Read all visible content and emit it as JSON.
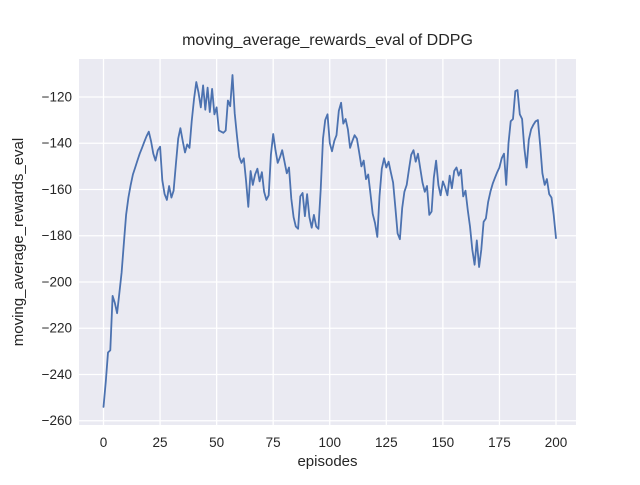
{
  "figure": {
    "title": "moving_average_rewards_eval of DDPG",
    "xlabel": "episodes",
    "ylabel": "moving_average_rewards_eval"
  },
  "colors": {
    "line": "#4c72b0",
    "plot_bg": "#eaeaf2",
    "fig_bg": "#ffffff",
    "grid": "#ffffff",
    "text": "#262626"
  },
  "axes": {
    "x_ticks": [
      0,
      25,
      50,
      75,
      100,
      125,
      150,
      175,
      200
    ],
    "y_ticks": [
      -120,
      -140,
      -160,
      -180,
      -200,
      -220,
      -240,
      -260
    ],
    "x_range": [
      -10.83,
      208.84
    ],
    "y_range": [
      -261.84,
      -103.57
    ],
    "grid": true,
    "legend": false
  },
  "chart_data": {
    "type": "line",
    "title": "moving_average_rewards_eval of DDPG",
    "xlabel": "episodes",
    "ylabel": "moving_average_rewards_eval",
    "series_name": "moving_average_rewards_eval",
    "x": [
      0,
      1,
      2,
      3,
      4,
      5,
      6,
      7,
      8,
      9,
      10,
      11,
      12,
      13,
      14,
      15,
      16,
      17,
      18,
      19,
      20,
      21,
      22,
      23,
      24,
      25,
      26,
      27,
      28,
      29,
      30,
      31,
      32,
      33,
      34,
      35,
      36,
      37,
      38,
      39,
      40,
      41,
      42,
      43,
      44,
      45,
      46,
      47,
      48,
      49,
      50,
      51,
      52,
      53,
      54,
      55,
      56,
      57,
      58,
      59,
      60,
      61,
      62,
      63,
      64,
      65,
      66,
      67,
      68,
      69,
      70,
      71,
      72,
      73,
      74,
      75,
      76,
      77,
      78,
      79,
      80,
      81,
      82,
      83,
      84,
      85,
      86,
      87,
      88,
      89,
      90,
      91,
      92,
      93,
      94,
      95,
      96,
      97,
      98,
      99,
      100,
      101,
      102,
      103,
      104,
      105,
      106,
      107,
      108,
      109,
      110,
      111,
      112,
      113,
      114,
      115,
      116,
      117,
      118,
      119,
      120,
      121,
      122,
      123,
      124,
      125,
      126,
      127,
      128,
      129,
      130,
      131,
      132,
      133,
      134,
      135,
      136,
      137,
      138,
      139,
      140,
      141,
      142,
      143,
      144,
      145,
      146,
      147,
      148,
      149,
      150,
      151,
      152,
      153,
      154,
      155,
      156,
      157,
      158,
      159,
      160,
      161,
      162,
      163,
      164,
      165,
      166,
      167,
      168,
      169,
      170,
      171,
      172,
      173,
      174,
      175,
      176,
      177,
      178,
      179,
      180,
      181,
      182,
      183,
      184,
      185,
      186,
      187,
      188,
      189,
      190,
      191,
      192,
      193,
      194,
      195,
      196,
      197,
      198,
      199,
      200
    ],
    "y": [
      -254,
      -243,
      -230.5,
      -229.5,
      -206,
      -209,
      -213.5,
      -205,
      -196,
      -183,
      -171,
      -163.5,
      -158,
      -153.5,
      -150.5,
      -147.5,
      -144.5,
      -142,
      -139.5,
      -137,
      -135,
      -139,
      -144.5,
      -147.5,
      -143,
      -141.5,
      -156,
      -162,
      -164.5,
      -158.5,
      -163.5,
      -160.5,
      -149,
      -138,
      -133.5,
      -139,
      -144,
      -140.5,
      -142,
      -130.5,
      -121,
      -113.5,
      -118,
      -124.5,
      -115,
      -125.5,
      -116,
      -126.5,
      -116.5,
      -127.5,
      -124.5,
      -134.5,
      -135,
      -135.5,
      -134.5,
      -121.5,
      -124,
      -110.5,
      -127,
      -137,
      -146,
      -148.5,
      -146.5,
      -156,
      -167.5,
      -152,
      -158,
      -153.5,
      -151,
      -156.5,
      -152.5,
      -161,
      -164.5,
      -162.5,
      -145,
      -136,
      -143,
      -148.5,
      -146,
      -143,
      -148,
      -153,
      -150.5,
      -164,
      -172,
      -176,
      -177,
      -163,
      -161.5,
      -171.5,
      -162,
      -172,
      -176.5,
      -171,
      -176,
      -177,
      -160,
      -138,
      -130,
      -127.5,
      -140,
      -143.5,
      -139,
      -136.5,
      -126,
      -122.5,
      -131.5,
      -129.5,
      -134,
      -142,
      -139,
      -136.5,
      -138,
      -144,
      -150,
      -147.5,
      -155.5,
      -153.5,
      -162,
      -170.5,
      -174.5,
      -180.5,
      -163,
      -151,
      -146.5,
      -150.5,
      -148,
      -152.5,
      -157,
      -168,
      -179,
      -181.5,
      -168,
      -161,
      -158,
      -151.5,
      -145,
      -143,
      -148,
      -144.5,
      -151,
      -157,
      -161,
      -158.5,
      -171,
      -169.5,
      -155,
      -147.5,
      -158,
      -162.5,
      -156.5,
      -159,
      -162.5,
      -154,
      -159.5,
      -152,
      -150.5,
      -154,
      -151.5,
      -163,
      -160.5,
      -169,
      -176,
      -186,
      -192.5,
      -182,
      -193.5,
      -186,
      -174,
      -172.5,
      -165.5,
      -161,
      -157.5,
      -155,
      -152.5,
      -150.5,
      -146.5,
      -144.5,
      -158,
      -140,
      -130.5,
      -129.5,
      -117.5,
      -117,
      -127.5,
      -129.5,
      -142,
      -150.5,
      -138.5,
      -134,
      -132,
      -130.5,
      -130,
      -141,
      -153,
      -158,
      -155.5,
      -162,
      -163.5,
      -171,
      -181
    ]
  }
}
